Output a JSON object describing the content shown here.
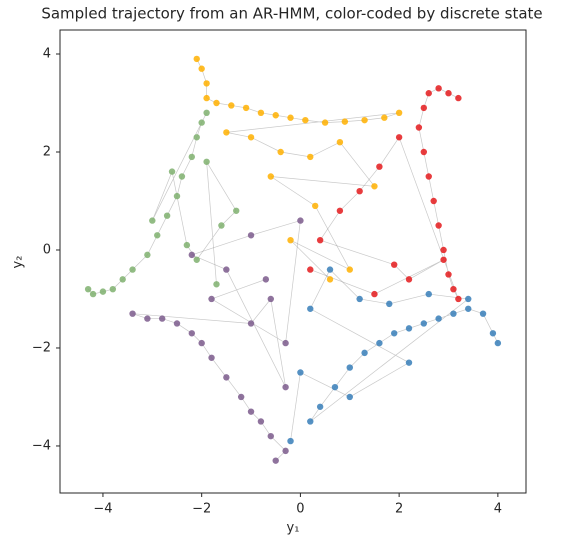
{
  "chart_data": {
    "type": "scatter",
    "title": "Sampled trajectory from an AR-HMM, color-coded by discrete state",
    "xlabel": "y₁",
    "ylabel": "y₂",
    "xlim": [
      -4.87,
      4.57
    ],
    "ylim": [
      -4.96,
      4.49
    ],
    "xticks": [
      {
        "value": -4,
        "label": "−4"
      },
      {
        "value": -2,
        "label": "−2"
      },
      0,
      2,
      4
    ],
    "yticks": [
      {
        "value": -4,
        "label": "−4"
      },
      {
        "value": -2,
        "label": "−2"
      },
      0,
      2,
      4
    ],
    "grid": false,
    "series": [
      {
        "color": "#ffb000",
        "x": [
          -2.1,
          -2.0,
          -1.9,
          -1.9,
          -1.7,
          -1.4,
          -1.1,
          -0.8,
          -0.5,
          -0.2,
          0.1,
          0.5,
          0.9,
          1.3,
          1.7,
          2.0,
          -1.5,
          -1.0,
          -0.4,
          0.2,
          0.8,
          1.5,
          -0.6,
          0.3,
          1.0,
          -0.2,
          0.6
        ],
        "values": [
          3.9,
          3.7,
          3.4,
          3.1,
          3.0,
          2.95,
          2.9,
          2.8,
          2.75,
          2.7,
          2.65,
          2.6,
          2.62,
          2.65,
          2.7,
          2.8,
          2.4,
          2.3,
          2.0,
          1.9,
          2.2,
          1.3,
          1.5,
          0.9,
          -0.4,
          0.2,
          -0.6
        ]
      },
      {
        "color": "#e41a1c",
        "x": [
          3.2,
          3.0,
          2.8,
          2.6,
          2.5,
          2.4,
          2.5,
          2.6,
          2.7,
          2.8,
          2.9,
          3.0,
          3.1,
          3.2,
          2.0,
          1.6,
          1.2,
          0.8,
          0.4,
          1.9,
          2.2,
          2.9,
          1.5,
          0.2
        ],
        "values": [
          3.1,
          3.2,
          3.3,
          3.2,
          2.9,
          2.5,
          2.0,
          1.5,
          1.0,
          0.5,
          0.0,
          -0.5,
          -0.8,
          -1.0,
          2.3,
          1.7,
          1.2,
          0.8,
          0.2,
          -0.3,
          -0.6,
          -0.2,
          -0.9,
          -0.4
        ]
      },
      {
        "color": "#377eb8",
        "x": [
          4.0,
          3.9,
          3.7,
          3.4,
          3.1,
          2.8,
          2.5,
          2.2,
          1.9,
          1.6,
          1.3,
          1.0,
          0.7,
          0.4,
          0.2,
          3.4,
          2.6,
          1.8,
          1.2,
          0.6,
          0.2,
          2.2,
          1.0,
          0.0,
          -0.2
        ],
        "values": [
          -1.9,
          -1.7,
          -1.3,
          -1.2,
          -1.3,
          -1.4,
          -1.5,
          -1.6,
          -1.7,
          -1.9,
          -2.1,
          -2.4,
          -2.8,
          -3.2,
          -3.5,
          -1.0,
          -0.9,
          -1.1,
          -1.0,
          -0.4,
          -1.2,
          -2.3,
          -3.0,
          -2.5,
          -3.9
        ]
      },
      {
        "color": "#7b5a8c",
        "x": [
          -0.5,
          -0.3,
          -0.6,
          -0.8,
          -1.0,
          -1.2,
          -1.5,
          -1.8,
          -2.0,
          -2.2,
          -2.5,
          -2.8,
          -3.1,
          -3.4,
          -1.0,
          -0.6,
          -0.3,
          -1.5,
          -2.2,
          -1.0,
          0.0,
          -0.3,
          -1.8,
          -0.7
        ],
        "values": [
          -4.3,
          -4.1,
          -3.8,
          -3.5,
          -3.3,
          -3.0,
          -2.6,
          -2.2,
          -1.9,
          -1.7,
          -1.5,
          -1.4,
          -1.4,
          -1.3,
          -1.5,
          -1.0,
          -2.8,
          -0.4,
          -0.1,
          0.3,
          0.6,
          -1.9,
          -1.0,
          -0.6
        ]
      },
      {
        "color": "#7fb06f",
        "x": [
          -4.3,
          -4.2,
          -4.0,
          -3.8,
          -3.6,
          -3.4,
          -3.1,
          -2.9,
          -2.7,
          -2.5,
          -2.4,
          -2.2,
          -2.1,
          -2.0,
          -1.9,
          -3.0,
          -2.6,
          -2.3,
          -2.1,
          -1.6,
          -1.3,
          -1.9,
          -1.7
        ],
        "values": [
          -0.8,
          -0.9,
          -0.85,
          -0.8,
          -0.6,
          -0.4,
          -0.1,
          0.3,
          0.7,
          1.1,
          1.5,
          1.9,
          2.3,
          2.6,
          2.8,
          0.6,
          1.6,
          0.1,
          -0.2,
          0.5,
          0.8,
          1.8,
          -0.7
        ]
      }
    ]
  }
}
